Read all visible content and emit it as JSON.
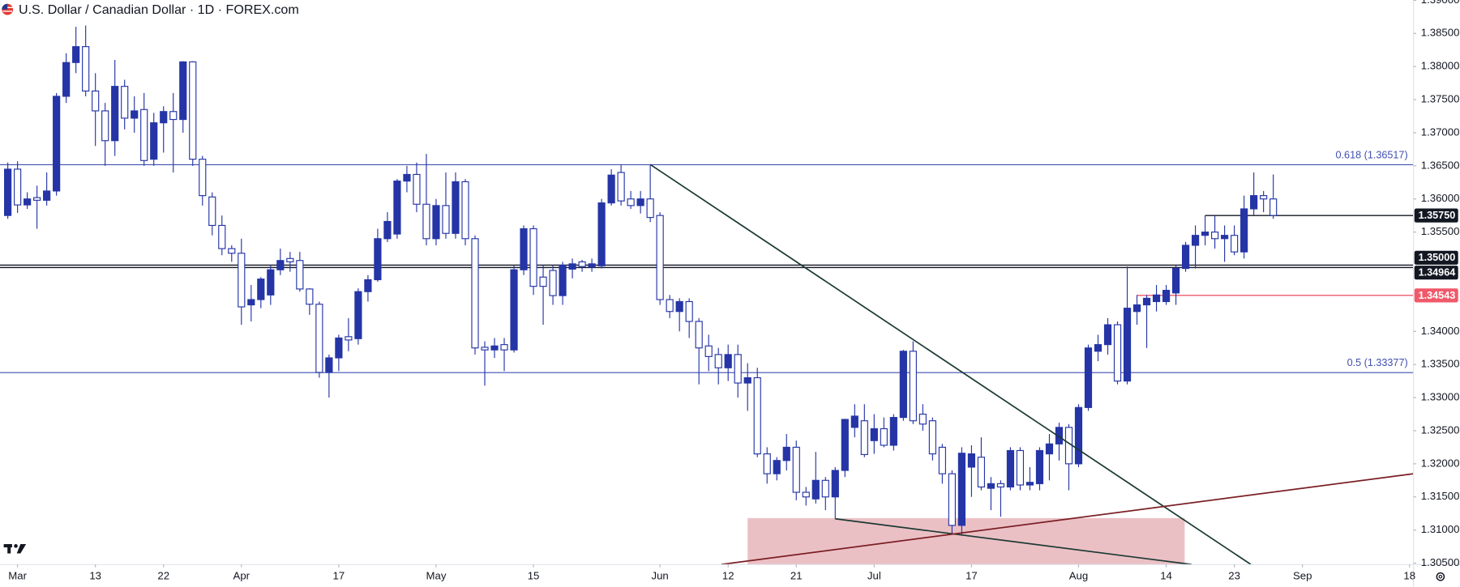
{
  "chart_data": {
    "type": "candlestick",
    "title": "U.S. Dollar / Canadian Dollar · 1D · FOREX.com",
    "up_color": "#2535a6",
    "down_color": "#ffffff",
    "border_color": "#2535a6",
    "open": [
      1.3575,
      1.3645,
      1.3591,
      1.3602,
      1.3598,
      1.3612,
      1.3755,
      1.3806,
      1.383,
      1.3763,
      1.3733,
      1.3688,
      1.377,
      1.3722,
      1.3735,
      1.366,
      1.3715,
      1.3732,
      1.372,
      1.3807,
      1.366,
      1.3603,
      1.356,
      1.3525,
      1.3518,
      1.344,
      1.3448,
      1.3455,
      1.3493,
      1.351,
      1.3507,
      1.3464,
      1.3441,
      1.3338,
      1.336,
      1.3392,
      1.3389,
      1.346,
      1.3478,
      1.354,
      1.3547,
      1.3627,
      1.3637,
      1.3592,
      1.354,
      1.359,
      1.3548,
      1.3626,
      1.354,
      1.3376,
      1.3372,
      1.338,
      1.3372,
      1.3493,
      1.3555,
      1.3482,
      1.3492,
      1.3454,
      1.3494,
      1.3505,
      1.3497,
      1.3499,
      1.3594,
      1.364,
      1.36,
      1.359,
      1.36,
      1.3575,
      1.3448,
      1.343,
      1.3445,
      1.3415,
      1.3378,
      1.3365,
      1.3345,
      1.3365,
      1.3322,
      1.333,
      1.3215,
      1.3185,
      1.3205,
      1.3225,
      1.3157,
      1.3147,
      1.3175,
      1.315,
      1.319,
      1.3255,
      1.3265,
      1.3235,
      1.3253,
      1.3228,
      1.327,
      1.337,
      1.3275,
      1.3265,
      1.3225,
      1.3185,
      1.3107,
      1.3195,
      1.321,
      1.3163,
      1.317,
      1.3165,
      1.322,
      1.3168,
      1.317,
      1.3215,
      1.323,
      1.3255,
      1.32,
      1.3285,
      1.337,
      1.338,
      1.341,
      1.3325,
      1.343,
      1.344,
      1.3445,
      1.3445,
      1.3458,
      1.3495,
      1.353,
      1.3545,
      1.355,
      1.354,
      1.3545,
      1.352,
      1.3585,
      1.3605,
      1.36
    ],
    "high": [
      1.3655,
      1.3657,
      1.361,
      1.362,
      1.364,
      1.376,
      1.382,
      1.386,
      1.3862,
      1.379,
      1.3745,
      1.381,
      1.378,
      1.3755,
      1.376,
      1.373,
      1.374,
      1.376,
      1.3808,
      1.3808,
      1.3665,
      1.361,
      1.3575,
      1.353,
      1.354,
      1.347,
      1.3482,
      1.35,
      1.3525,
      1.352,
      1.352,
      1.3465,
      1.3445,
      1.3365,
      1.3395,
      1.342,
      1.3465,
      1.3485,
      1.3555,
      1.358,
      1.363,
      1.365,
      1.3655,
      1.3668,
      1.36,
      1.364,
      1.364,
      1.363,
      1.3545,
      1.3385,
      1.339,
      1.339,
      1.35,
      1.356,
      1.356,
      1.35,
      1.35,
      1.3505,
      1.351,
      1.3508,
      1.351,
      1.36,
      1.3645,
      1.3652,
      1.3612,
      1.3612,
      1.3652,
      1.358,
      1.3455,
      1.345,
      1.345,
      1.342,
      1.3395,
      1.3375,
      1.338,
      1.338,
      1.3352,
      1.3345,
      1.3225,
      1.321,
      1.3245,
      1.3235,
      1.3165,
      1.3218,
      1.318,
      1.3195,
      1.3268,
      1.329,
      1.329,
      1.3275,
      1.327,
      1.3275,
      1.3372,
      1.3385,
      1.329,
      1.327,
      1.323,
      1.319,
      1.3225,
      1.3228,
      1.324,
      1.318,
      1.3175,
      1.3225,
      1.3225,
      1.3195,
      1.3225,
      1.3245,
      1.3262,
      1.326,
      1.329,
      1.338,
      1.3395,
      1.342,
      1.3415,
      1.3498,
      1.3455,
      1.3455,
      1.347,
      1.347,
      1.35,
      1.3535,
      1.356,
      1.3575,
      1.3575,
      1.356,
      1.356,
      1.3605,
      1.364,
      1.3612,
      1.3637
    ],
    "low": [
      1.357,
      1.3579,
      1.3585,
      1.3555,
      1.359,
      1.3605,
      1.3745,
      1.379,
      1.3755,
      1.368,
      1.365,
      1.3665,
      1.3705,
      1.37,
      1.365,
      1.365,
      1.367,
      1.364,
      1.37,
      1.365,
      1.359,
      1.3545,
      1.3515,
      1.3505,
      1.341,
      1.3415,
      1.3435,
      1.344,
      1.3485,
      1.349,
      1.346,
      1.3425,
      1.333,
      1.33,
      1.334,
      1.337,
      1.338,
      1.3445,
      1.3475,
      1.3535,
      1.354,
      1.361,
      1.358,
      1.353,
      1.353,
      1.354,
      1.354,
      1.353,
      1.3365,
      1.3318,
      1.336,
      1.334,
      1.3368,
      1.3485,
      1.3455,
      1.341,
      1.344,
      1.344,
      1.348,
      1.349,
      1.349,
      1.3495,
      1.359,
      1.359,
      1.3585,
      1.3578,
      1.3565,
      1.344,
      1.342,
      1.34,
      1.339,
      1.332,
      1.334,
      1.332,
      1.3325,
      1.33,
      1.328,
      1.321,
      1.317,
      1.3175,
      1.319,
      1.3145,
      1.3137,
      1.314,
      1.313,
      1.3117,
      1.318,
      1.324,
      1.321,
      1.3215,
      1.3225,
      1.322,
      1.3265,
      1.326,
      1.325,
      1.3205,
      1.317,
      1.3095,
      1.3093,
      1.315,
      1.316,
      1.313,
      1.312,
      1.316,
      1.316,
      1.316,
      1.316,
      1.3175,
      1.3205,
      1.316,
      1.3195,
      1.328,
      1.3355,
      1.3365,
      1.332,
      1.332,
      1.341,
      1.3375,
      1.343,
      1.344,
      1.344,
      1.349,
      1.3495,
      1.353,
      1.3525,
      1.3505,
      1.3515,
      1.351,
      1.3575,
      1.358,
      1.357
    ],
    "close": [
      1.3645,
      1.3591,
      1.36,
      1.3598,
      1.3612,
      1.3755,
      1.3806,
      1.383,
      1.3763,
      1.3733,
      1.3688,
      1.377,
      1.3722,
      1.3733,
      1.3658,
      1.3715,
      1.3732,
      1.372,
      1.3807,
      1.366,
      1.3605,
      1.356,
      1.3525,
      1.3518,
      1.3437,
      1.3448,
      1.3479,
      1.3493,
      1.3507,
      1.3505,
      1.3464,
      1.3441,
      1.3338,
      1.336,
      1.339,
      1.3387,
      1.346,
      1.3478,
      1.354,
      1.3566,
      1.3627,
      1.3637,
      1.3592,
      1.354,
      1.359,
      1.3548,
      1.3626,
      1.354,
      1.3375,
      1.3372,
      1.3378,
      1.3372,
      1.3493,
      1.3555,
      1.3468,
      1.3468,
      1.3454,
      1.35,
      1.3502,
      1.3498,
      1.3502,
      1.3594,
      1.3636,
      1.3597,
      1.359,
      1.36,
      1.3572,
      1.3448,
      1.343,
      1.3445,
      1.3415,
      1.3375,
      1.3362,
      1.3345,
      1.3365,
      1.3322,
      1.333,
      1.3215,
      1.3185,
      1.3205,
      1.3225,
      1.3157,
      1.315,
      1.3175,
      1.315,
      1.319,
      1.3267,
      1.3272,
      1.3214,
      1.3253,
      1.3228,
      1.327,
      1.337,
      1.3265,
      1.326,
      1.3215,
      1.3185,
      1.3107,
      1.3216,
      1.3215,
      1.3165,
      1.317,
      1.3165,
      1.322,
      1.3168,
      1.3172,
      1.322,
      1.323,
      1.3255,
      1.32,
      1.3285,
      1.3375,
      1.338,
      1.341,
      1.3325,
      1.3435,
      1.344,
      1.345,
      1.3455,
      1.3462,
      1.3495,
      1.353,
      1.3545,
      1.355,
      1.354,
      1.3545,
      1.352,
      1.3585,
      1.3605,
      1.36,
      1.3575
    ],
    "xlim": [
      -0.8,
      144.4
    ],
    "xticks": [
      {
        "value": 1,
        "label": "Mar"
      },
      {
        "value": 9,
        "label": "13"
      },
      {
        "value": 16,
        "label": "22"
      },
      {
        "value": 24,
        "label": "Apr"
      },
      {
        "value": 34,
        "label": "17"
      },
      {
        "value": 44,
        "label": "May"
      },
      {
        "value": 54,
        "label": "15"
      },
      {
        "value": 67,
        "label": "Jun"
      },
      {
        "value": 74,
        "label": "12"
      },
      {
        "value": 81,
        "label": "21"
      },
      {
        "value": 89,
        "label": "Jul"
      },
      {
        "value": 99,
        "label": "17"
      },
      {
        "value": 110,
        "label": "Aug"
      },
      {
        "value": 119,
        "label": "14"
      },
      {
        "value": 126,
        "label": "23"
      },
      {
        "value": 133,
        "label": "Sep"
      },
      {
        "value": 144,
        "label": "18"
      }
    ],
    "ylim": [
      1.30478,
      1.39003
    ],
    "yticks": [
      {
        "value": 1.305,
        "label": "1.30500"
      },
      {
        "value": 1.31,
        "label": "1.31000"
      },
      {
        "value": 1.315,
        "label": "1.31500"
      },
      {
        "value": 1.32,
        "label": "1.32000"
      },
      {
        "value": 1.325,
        "label": "1.32500"
      },
      {
        "value": 1.33,
        "label": "1.33000"
      },
      {
        "value": 1.335,
        "label": "1.33500"
      },
      {
        "value": 1.34,
        "label": "1.34000"
      },
      {
        "value": 1.355,
        "label": "1.35500"
      },
      {
        "value": 1.36,
        "label": "1.36000"
      },
      {
        "value": 1.365,
        "label": "1.36500"
      },
      {
        "value": 1.37,
        "label": "1.37000"
      },
      {
        "value": 1.375,
        "label": "1.37500"
      },
      {
        "value": 1.38,
        "label": "1.38000"
      },
      {
        "value": 1.385,
        "label": "1.38500"
      },
      {
        "value": 1.39,
        "label": "1.39000"
      }
    ],
    "levels": [
      {
        "value": 1.36517,
        "label": "0.618 (1.36517)",
        "kind": "fib",
        "color": "#3f4fb0"
      },
      {
        "value": 1.33377,
        "label": "0.5 (1.33377)",
        "kind": "fib",
        "color": "#3f4fb0"
      },
      {
        "value": 1.3575,
        "label": "1.35750",
        "kind": "price",
        "color": "#131722",
        "from": 123
      },
      {
        "value": 1.35,
        "label": "1.35000",
        "kind": "price",
        "color": "#131722"
      },
      {
        "value": 1.34964,
        "label": "1.34964",
        "kind": "price",
        "color": "#131722"
      },
      {
        "value": 1.34543,
        "label": "1.34543",
        "kind": "price",
        "color": "#f0596a",
        "from": 116
      }
    ],
    "trendlines": [
      {
        "x": [
          66,
          127.7
        ],
        "y": [
          1.3652,
          1.3048
        ],
        "color": "#1c3a34"
      },
      {
        "x": [
          85,
          121.6
        ],
        "y": [
          1.3117,
          1.3048
        ],
        "color": "#1c3a34"
      },
      {
        "x": [
          73.3,
          144.4
        ],
        "y": [
          1.3048,
          1.3185
        ],
        "color": "#7a1f24"
      }
    ],
    "zones": [
      {
        "x": [
          76,
          120.9
        ],
        "y": [
          1.3048,
          1.3118
        ],
        "color": "#e7b5bb"
      }
    ]
  }
}
